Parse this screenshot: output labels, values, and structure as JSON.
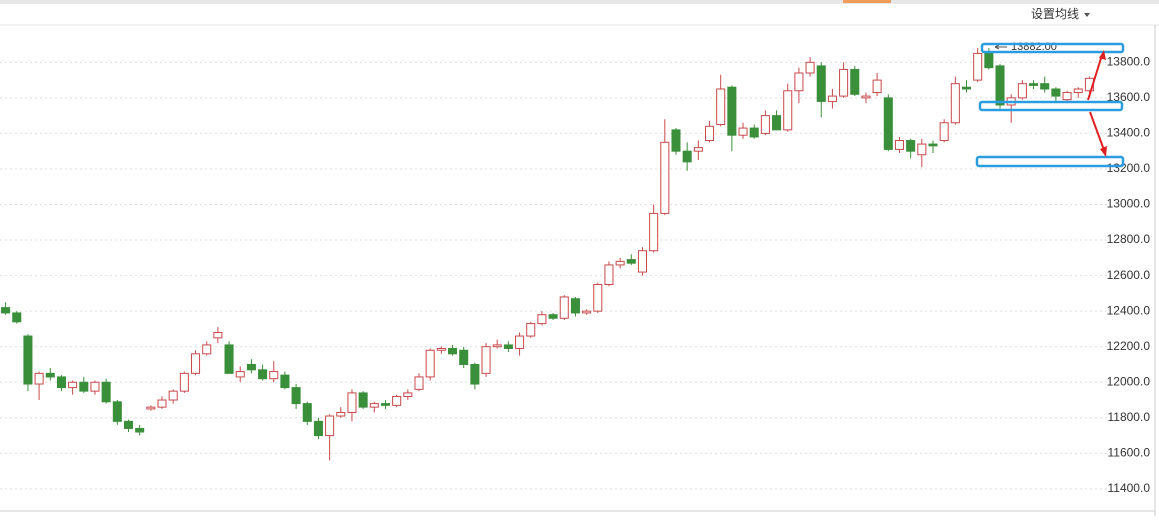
{
  "toolbar": {
    "ma_setting": "设置均线"
  },
  "chart_data": {
    "type": "candlestick",
    "annotations": [
      {
        "text": "13882.00"
      }
    ],
    "up_color": "#c9494b",
    "down_color": "#3a8f3a",
    "grid": true,
    "ylim": [
      11270,
      14010
    ],
    "yticks": [
      {
        "value": 11400,
        "label": "11400.0"
      },
      {
        "value": 11600,
        "label": "11600.0"
      },
      {
        "value": 11800,
        "label": "11800.0"
      },
      {
        "value": 12000,
        "label": "12000.0"
      },
      {
        "value": 12200,
        "label": "12200.0"
      },
      {
        "value": 12400,
        "label": "12400.0"
      },
      {
        "value": 12600,
        "label": "12600.0"
      },
      {
        "value": 12800,
        "label": "12800.0"
      },
      {
        "value": 13000,
        "label": "13000.0"
      },
      {
        "value": 13200,
        "label": "13200.0"
      },
      {
        "value": 13400,
        "label": "13400.0"
      },
      {
        "value": 13600,
        "label": "13600.0"
      },
      {
        "value": 13800,
        "label": "13800.0"
      }
    ],
    "open": [
      12420,
      12390,
      12260,
      11990,
      12050,
      12030,
      11970,
      12000,
      11950,
      12000,
      11890,
      11780,
      11740,
      11850,
      11860,
      11900,
      11950,
      12050,
      12160,
      12250,
      12210,
      12030,
      12100,
      12070,
      12020,
      12040,
      11970,
      11880,
      11780,
      11700,
      11810,
      11830,
      11940,
      11860,
      11880,
      11870,
      11920,
      11960,
      12030,
      12180,
      12190,
      12180,
      12100,
      12050,
      12200,
      12210,
      12190,
      12260,
      12330,
      12380,
      12360,
      12470,
      12390,
      12400,
      12550,
      12660,
      12690,
      12620,
      12740,
      12950,
      13420,
      13300,
      13300,
      13360,
      13450,
      13660,
      13390,
      13430,
      13400,
      13500,
      13420,
      13640,
      13740,
      13780,
      13580,
      13610,
      13760,
      13600,
      13630,
      13600,
      13310,
      13360,
      13280,
      13340,
      13360,
      13460,
      13660,
      13700,
      13850,
      13780,
      13560,
      13600,
      13680,
      13680,
      13650,
      13590,
      13630,
      13640
    ],
    "high": [
      12450,
      12400,
      12270,
      12060,
      12080,
      12040,
      12010,
      12030,
      12010,
      12020,
      11900,
      11790,
      11760,
      11870,
      11920,
      11960,
      12060,
      12180,
      12230,
      12310,
      12230,
      12090,
      12130,
      12100,
      12120,
      12060,
      11990,
      11890,
      11800,
      11820,
      11860,
      11960,
      11950,
      11890,
      11900,
      11930,
      11960,
      12050,
      12190,
      12200,
      12210,
      12200,
      12110,
      12220,
      12240,
      12230,
      12280,
      12340,
      12400,
      12390,
      12490,
      12480,
      12410,
      12560,
      12680,
      12700,
      12720,
      12760,
      13000,
      13480,
      13430,
      13350,
      13360,
      13470,
      13730,
      13670,
      13460,
      13450,
      13530,
      13530,
      13680,
      13770,
      13830,
      13800,
      13650,
      13800,
      13780,
      13630,
      13740,
      13620,
      13380,
      13370,
      13370,
      13360,
      13480,
      13720,
      13700,
      13880,
      13880,
      13790,
      13620,
      13700,
      13700,
      13720,
      13660,
      13640,
      13660,
      13720
    ],
    "low": [
      12380,
      12330,
      11950,
      11900,
      12010,
      11950,
      11930,
      11940,
      11930,
      11880,
      11760,
      11720,
      11700,
      11840,
      11850,
      11880,
      11940,
      12040,
      12150,
      12220,
      12050,
      12000,
      12050,
      12010,
      12000,
      11960,
      11850,
      11760,
      11680,
      11560,
      11800,
      11780,
      11850,
      11830,
      11850,
      11860,
      11900,
      11950,
      12010,
      12160,
      12150,
      12080,
      11960,
      12030,
      12190,
      12170,
      12150,
      12250,
      12320,
      12350,
      12350,
      12370,
      12380,
      12390,
      12540,
      12640,
      12660,
      12600,
      12730,
      12940,
      13280,
      13190,
      13250,
      13350,
      13440,
      13300,
      13370,
      13370,
      13390,
      13420,
      13410,
      13570,
      13720,
      13490,
      13540,
      13600,
      13610,
      13570,
      13610,
      13300,
      13290,
      13260,
      13210,
      13290,
      13350,
      13450,
      13630,
      13690,
      13760,
      13540,
      13460,
      13590,
      13650,
      13630,
      13570,
      13570,
      13600,
      13630
    ],
    "close": [
      12390,
      12340,
      11990,
      12050,
      12030,
      11970,
      12000,
      11950,
      12000,
      11890,
      11780,
      11740,
      11720,
      11860,
      11900,
      11950,
      12050,
      12160,
      12210,
      12280,
      12050,
      12060,
      12070,
      12020,
      12060,
      11970,
      11880,
      11780,
      11700,
      11810,
      11830,
      11940,
      11860,
      11880,
      11870,
      11920,
      11940,
      12030,
      12180,
      12190,
      12160,
      12100,
      11990,
      12200,
      12210,
      12190,
      12260,
      12330,
      12380,
      12360,
      12480,
      12390,
      12400,
      12550,
      12660,
      12680,
      12670,
      12740,
      12950,
      13350,
      13300,
      13240,
      13320,
      13440,
      13650,
      13390,
      13430,
      13380,
      13500,
      13420,
      13640,
      13740,
      13800,
      13580,
      13610,
      13760,
      13620,
      13610,
      13700,
      13310,
      13360,
      13300,
      13340,
      13330,
      13460,
      13680,
      13650,
      13850,
      13770,
      13560,
      13600,
      13680,
      13670,
      13650,
      13610,
      13630,
      13650,
      13710
    ]
  }
}
